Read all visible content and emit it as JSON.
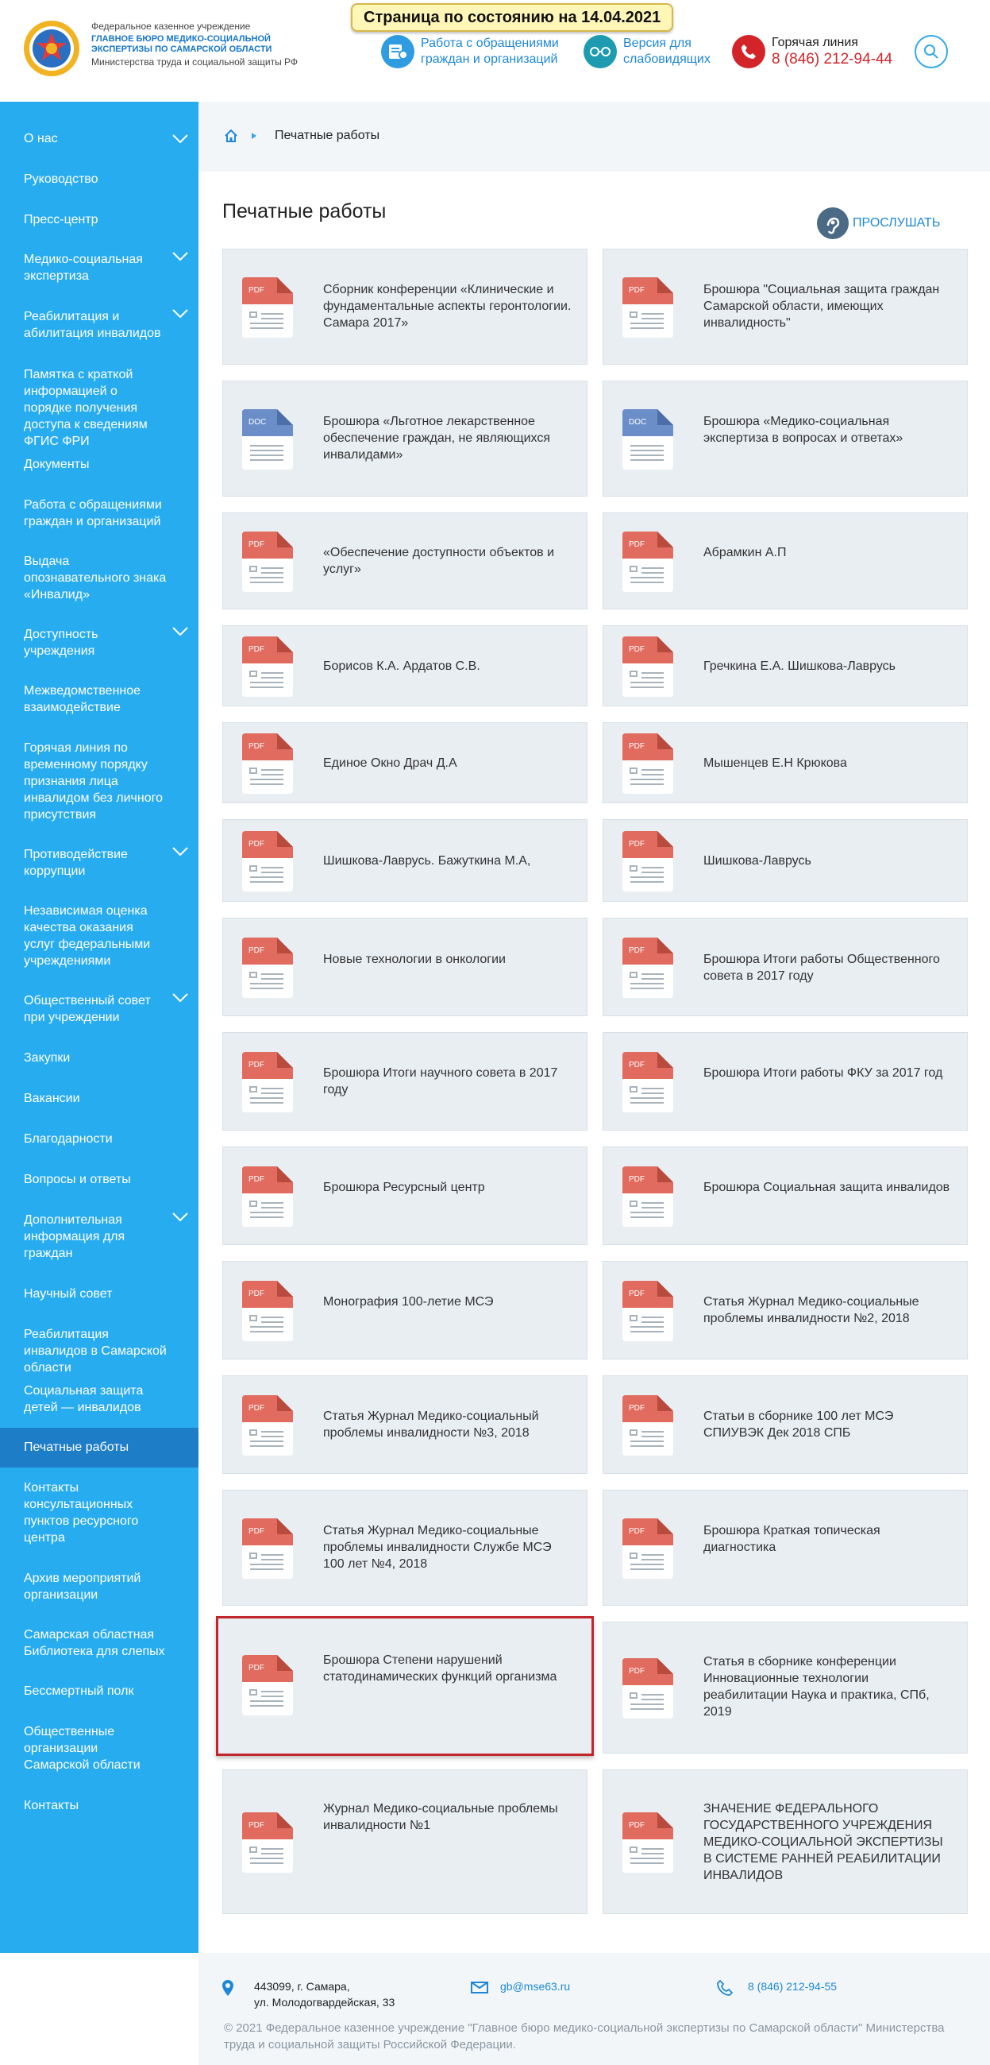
{
  "header": {
    "org_line1": "Федеральное казенное учреждение",
    "org_line2": "ГЛАВНОЕ БЮРО МЕДИКО-СОЦИАЛЬНОЙ ЭКСПЕРТИЗЫ ПО САМАРСКОЙ ОБЛАСТИ",
    "org_line3": "Министерства труда и социальной защиты РФ",
    "state_badge": "Страница по состоянию на 14.04.2021",
    "appeals_link": "Работа с обращениями граждан и организаций",
    "vision_link": "Версия для слабовидящих",
    "hotline_title": "Горячая линия",
    "hotline_phone": "8 (846) 212-94-44"
  },
  "sidebar": {
    "items": [
      "О нас",
      "Руководство",
      "Пресс-центр",
      "Медико-социальная экспертиза",
      "Реабилитация и абилитация инвалидов",
      "Памятка с краткой информацией о порядке получения доступа к сведениям ФГИС ФРИ",
      "Документы",
      "Работа с обращениями граждан и организаций",
      "Выдача опознавательного знака «Инвалид»",
      "Доступность учреждения",
      "Межведомственное взаимодействие",
      "Горячая линия по временному порядку признания лица инвалидом без личного присутствия",
      "Противодействие коррупции",
      "Независимая оценка качества оказания услуг федеральными учреждениями",
      "Общественный совет при учреждении",
      "Закупки",
      "Вакансии",
      "Благодарности",
      "Вопросы и ответы",
      "Дополнительная информация для граждан",
      "Научный совет",
      "Реабилитация инвалидов в Самарской области",
      "Социальная защита детей — инвалидов",
      "Печатные работы",
      "Контакты консультационных пунктов ресурсного центра",
      "Архив мероприятий организации",
      "Самарская областная Библиотека для слепых",
      "Бессмертный полк",
      "Общественные организации Самарской области",
      "Контакты"
    ]
  },
  "breadcrumb": {
    "current": "Печатные работы"
  },
  "main": {
    "title": "Печатные работы",
    "listen": "ПРОСЛУШАТЬ",
    "cards": [
      {
        "type": "PDF",
        "title": "Сборник конференции «Клинические и фундаментальные аспекты геронтологии. Самара 2017»"
      },
      {
        "type": "PDF",
        "title": "Брошюра \"Социальная защита граждан Самарской области, имеющих инвалидность\""
      },
      {
        "type": "DOC",
        "title": "Брошюра «Льготное лекарственное обеспечение граждан, не являющихся инвалидами»"
      },
      {
        "type": "DOC",
        "title": "Брошюра «Медико-социальная экспертиза в вопросах и ответах»"
      },
      {
        "type": "PDF",
        "title": "«Обеспечение доступности объектов и услуг»"
      },
      {
        "type": "PDF",
        "title": "Абрамкин А.П"
      },
      {
        "type": "PDF",
        "title": "Борисов К.А. Ардатов С.В."
      },
      {
        "type": "PDF",
        "title": "Гречкина Е.А. Шишкова-Лаврусь"
      },
      {
        "type": "PDF",
        "title": "Единое Окно Драч Д.А"
      },
      {
        "type": "PDF",
        "title": "Мышенцев Е.Н Крюкова"
      },
      {
        "type": "PDF",
        "title": "Шишкова-Лаврусь. Бажуткина М.А,"
      },
      {
        "type": "PDF",
        "title": "Шишкова-Лаврусь"
      },
      {
        "type": "PDF",
        "title": "Новые технологии в онкологии"
      },
      {
        "type": "PDF",
        "title": "Брошюра Итоги работы Общественного совета в 2017 году"
      },
      {
        "type": "PDF",
        "title": "Брошюра Итоги научного совета в 2017 году"
      },
      {
        "type": "PDF",
        "title": "Брошюра Итоги работы ФКУ за 2017 год"
      },
      {
        "type": "PDF",
        "title": "Брошюра Ресурсный центр"
      },
      {
        "type": "PDF",
        "title": "Брошюра Социальная защита инвалидов"
      },
      {
        "type": "PDF",
        "title": "Монография 100-летие МСЭ"
      },
      {
        "type": "PDF",
        "title": "Статья Журнал Медико-социальные проблемы инвалидности №2, 2018"
      },
      {
        "type": "PDF",
        "title": "Статья Журнал Медико-социальный проблемы инвалидности №3, 2018"
      },
      {
        "type": "PDF",
        "title": "Статьи в сборнике 100 лет МСЭ СПИУВЭК Дек 2018 СПБ"
      },
      {
        "type": "PDF",
        "title": "Статья Журнал Медико-социальные проблемы инвалидности Службе МСЭ 100 лет №4, 2018"
      },
      {
        "type": "PDF",
        "title": "Брошюра Краткая топическая диагностика"
      },
      {
        "type": "PDF",
        "title": "Брошюра Степени нарушений статодинамических функций организма"
      },
      {
        "type": "PDF",
        "title": "Статья в сборнике конференции Инновационные технологии реабилитации Наука и практика, СПб, 2019"
      },
      {
        "type": "PDF",
        "title": "Журнал Медико-социальные проблемы инвалидности №1"
      },
      {
        "type": "PDF",
        "title": "ЗНАЧЕНИЕ ФЕДЕРАЛЬНОГО ГОСУДАРСТВЕННОГО УЧРЕЖДЕНИЯ МЕДИКО-СОЦИАЛЬНОЙ ЭКСПЕРТИЗЫ В СИСТЕМЕ РАННЕЙ РЕАБИЛИТАЦИИ ИНВАЛИДОВ"
      }
    ]
  },
  "footer": {
    "address_line1": "443099, г. Самара,",
    "address_line2": "ул. Молодогвардейская, 33",
    "email": "gb@mse63.ru",
    "phone": "8 (846) 212-94-55",
    "copyright": "© 2021 Федеральное казенное учреждение \"Главное бюро медико-социальной экспертизы по Самарской области\" Министерства труда и социальной защиты Российской Федерации."
  },
  "colors": {
    "sidebar": "#28acf0",
    "sidebar_active": "#1d7dc6",
    "link": "#1e88d8",
    "pdf": "#e06b5e",
    "doc": "#6b8ec9",
    "highlight": "#c0262c"
  }
}
